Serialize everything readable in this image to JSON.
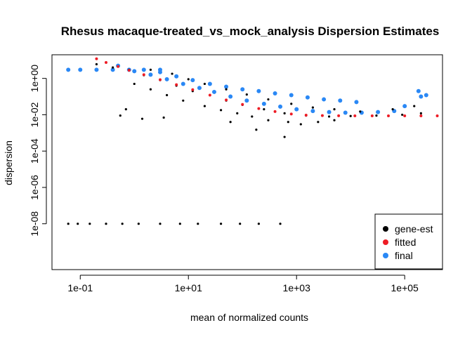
{
  "chart_data": {
    "type": "scatter",
    "title": "Rhesus macaque-treated_vs_mock_analysis Dispersion Estimates",
    "xlabel": "mean of normalized counts",
    "ylabel": "dispersion",
    "x_scale": "log10",
    "y_scale": "log10",
    "xlim": [
      0.03,
      500000
    ],
    "ylim": [
      3e-11,
      20
    ],
    "x_ticks": [
      {
        "value": 0.1,
        "label": "1e-01"
      },
      {
        "value": 10,
        "label": "1e+01"
      },
      {
        "value": 1000,
        "label": "1e+03"
      },
      {
        "value": 100000,
        "label": "1e+05"
      }
    ],
    "y_ticks": [
      {
        "value": 1e-08,
        "label": "1e-08"
      },
      {
        "value": 1e-06,
        "label": "1e-06"
      },
      {
        "value": 0.0001,
        "label": "1e-04"
      },
      {
        "value": 0.01,
        "label": "1e-02"
      },
      {
        "value": 1,
        "label": "1e+00"
      }
    ],
    "grid": false,
    "legend_position": "bottom-right",
    "series": [
      {
        "name": "gene-est",
        "color": "#000000",
        "points": [
          [
            0.06,
            1e-08
          ],
          [
            0.09,
            1e-08
          ],
          [
            0.15,
            1e-08
          ],
          [
            0.3,
            1e-08
          ],
          [
            0.6,
            1e-08
          ],
          [
            1.2,
            1e-08
          ],
          [
            3,
            1e-08
          ],
          [
            7,
            1e-08
          ],
          [
            15,
            1e-08
          ],
          [
            40,
            1e-08
          ],
          [
            90,
            1e-08
          ],
          [
            200,
            1e-08
          ],
          [
            500,
            1e-08
          ],
          [
            0.7,
            0.02
          ],
          [
            1.4,
            0.006
          ],
          [
            3.5,
            0.007
          ],
          [
            0.55,
            0.009
          ],
          [
            60,
            0.004
          ],
          [
            180,
            0.0015
          ],
          [
            600,
            0.0006
          ],
          [
            0.2,
            6
          ],
          [
            0.4,
            4
          ],
          [
            0.8,
            3
          ],
          [
            1.5,
            1.5
          ],
          [
            3,
            0.8
          ],
          [
            6,
            0.4
          ],
          [
            12,
            0.2
          ],
          [
            25,
            0.12
          ],
          [
            50,
            0.06
          ],
          [
            100,
            0.035
          ],
          [
            250,
            0.02
          ],
          [
            600,
            0.012
          ],
          [
            1500,
            0.009
          ],
          [
            4000,
            0.008
          ],
          [
            10000,
            0.0085
          ],
          [
            30000,
            0.009
          ],
          [
            90000,
            0.01
          ],
          [
            200000,
            0.012
          ],
          [
            1,
            0.5
          ],
          [
            2,
            0.25
          ],
          [
            4,
            0.12
          ],
          [
            8,
            0.06
          ],
          [
            20,
            0.03
          ],
          [
            40,
            0.018
          ],
          [
            80,
            0.012
          ],
          [
            150,
            0.008
          ],
          [
            300,
            0.005
          ],
          [
            700,
            0.004
          ],
          [
            1200,
            0.003
          ],
          [
            2500,
            0.004
          ],
          [
            5000,
            0.005
          ],
          [
            2,
            3
          ],
          [
            5,
            1.8
          ],
          [
            10,
            0.9
          ],
          [
            20,
            0.5
          ],
          [
            50,
            0.25
          ],
          [
            120,
            0.13
          ],
          [
            300,
            0.07
          ],
          [
            800,
            0.04
          ],
          [
            2000,
            0.025
          ],
          [
            5000,
            0.02
          ],
          [
            15000,
            0.015
          ],
          [
            60000,
            0.02
          ],
          [
            150000,
            0.03
          ]
        ]
      },
      {
        "name": "fitted",
        "color": "#ee1c25",
        "points": [
          [
            0.2,
            12
          ],
          [
            0.3,
            7.5
          ],
          [
            0.5,
            4.5
          ],
          [
            0.8,
            2.8
          ],
          [
            1.5,
            1.6
          ],
          [
            3,
            0.85
          ],
          [
            6,
            0.45
          ],
          [
            12,
            0.24
          ],
          [
            25,
            0.12
          ],
          [
            50,
            0.065
          ],
          [
            100,
            0.037
          ],
          [
            200,
            0.022
          ],
          [
            400,
            0.015
          ],
          [
            800,
            0.011
          ],
          [
            1500,
            0.0095
          ],
          [
            3000,
            0.009
          ],
          [
            6000,
            0.0088
          ],
          [
            12000,
            0.0087
          ],
          [
            25000,
            0.0087
          ],
          [
            50000,
            0.0087
          ],
          [
            100000,
            0.0087
          ],
          [
            200000,
            0.0087
          ],
          [
            400000,
            0.0087
          ]
        ]
      },
      {
        "name": "final",
        "color": "#2a88f5",
        "points": [
          [
            0.06,
            3
          ],
          [
            0.1,
            3
          ],
          [
            0.2,
            3
          ],
          [
            0.4,
            3
          ],
          [
            0.8,
            3
          ],
          [
            1.5,
            3
          ],
          [
            3,
            3
          ],
          [
            0.5,
            5
          ],
          [
            1,
            2.5
          ],
          [
            2,
            1.6
          ],
          [
            4,
            0.9
          ],
          [
            8,
            0.5
          ],
          [
            16,
            0.3
          ],
          [
            30,
            0.18
          ],
          [
            60,
            0.1
          ],
          [
            120,
            0.06
          ],
          [
            250,
            0.04
          ],
          [
            500,
            0.028
          ],
          [
            1000,
            0.02
          ],
          [
            2000,
            0.016
          ],
          [
            4000,
            0.014
          ],
          [
            8000,
            0.013
          ],
          [
            16000,
            0.013
          ],
          [
            32000,
            0.014
          ],
          [
            64000,
            0.016
          ],
          [
            3,
            2.2
          ],
          [
            6,
            1.3
          ],
          [
            12,
            0.8
          ],
          [
            25,
            0.5
          ],
          [
            50,
            0.35
          ],
          [
            100,
            0.25
          ],
          [
            200,
            0.2
          ],
          [
            400,
            0.15
          ],
          [
            800,
            0.12
          ],
          [
            1600,
            0.09
          ],
          [
            3200,
            0.07
          ],
          [
            6400,
            0.06
          ],
          [
            12800,
            0.05
          ],
          [
            100000,
            0.03
          ],
          [
            200000,
            0.1
          ],
          [
            250000,
            0.12
          ],
          [
            180000,
            0.2
          ]
        ]
      }
    ]
  }
}
